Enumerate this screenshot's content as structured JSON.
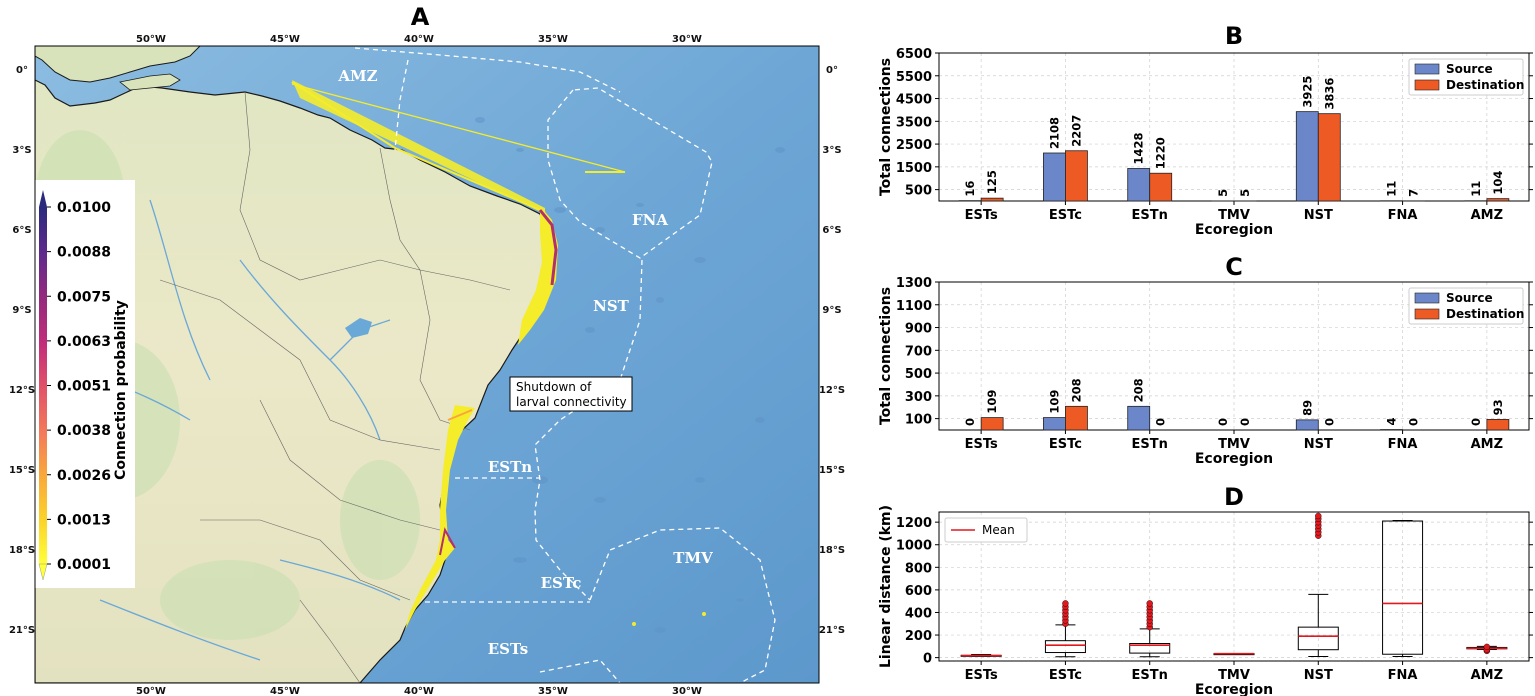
{
  "panel_a": {
    "letter": "A",
    "lon_ticks": [
      "50°W",
      "45°W",
      "40°W",
      "35°W",
      "30°W"
    ],
    "lat_ticks": [
      "0°",
      "3°S",
      "6°S",
      "9°S",
      "12°S",
      "15°S",
      "18°S",
      "21°S"
    ],
    "ecoregions": [
      "AMZ",
      "FNA",
      "NST",
      "ESTn",
      "TMV",
      "ESTc",
      "ESTs"
    ],
    "annotation": [
      "Shutdown of",
      "larval connectivity"
    ],
    "colorbar": {
      "label": "Connection probability",
      "ticks": [
        "0.0100",
        "0.0088",
        "0.0075",
        "0.0063",
        "0.0051",
        "0.0038",
        "0.0026",
        "0.0013",
        "0.0001"
      ],
      "colors": [
        "#2b2a7c",
        "#4b2a8f",
        "#6b2a8a",
        "#93297e",
        "#c12d7a",
        "#e0506a",
        "#f3795a",
        "#f9a73b",
        "#fbd42a",
        "#ffff3a"
      ]
    },
    "colors": {
      "ocean": "#7fb1db",
      "land": "#e7e6c4",
      "connection": "#f5ec2a",
      "strong": "#b3306f"
    }
  },
  "chart_data": [
    {
      "panel": "B",
      "type": "bar",
      "categories": [
        "ESTs",
        "ESTc",
        "ESTn",
        "TMV",
        "NST",
        "FNA",
        "AMZ"
      ],
      "series": [
        {
          "name": "Source",
          "values": [
            16,
            2108,
            1428,
            5,
            3925,
            11,
            11
          ],
          "color": "#6b86c9"
        },
        {
          "name": "Destination",
          "values": [
            125,
            2207,
            1220,
            5,
            3836,
            7,
            104
          ],
          "color": "#ee5a24"
        }
      ],
      "xlabel": "Ecoregion",
      "ylabel": "Total connections",
      "ylim": [
        0,
        6500
      ],
      "yticks": [
        500,
        1500,
        2500,
        3500,
        4500,
        5500,
        6500
      ],
      "grid": true,
      "legend": "top-right"
    },
    {
      "panel": "C",
      "type": "bar",
      "categories": [
        "ESTs",
        "ESTc",
        "ESTn",
        "TMV",
        "NST",
        "FNA",
        "AMZ"
      ],
      "series": [
        {
          "name": "Source",
          "values": [
            0,
            109,
            208,
            0,
            89,
            4,
            0
          ],
          "color": "#6b86c9"
        },
        {
          "name": "Destination",
          "values": [
            109,
            208,
            0,
            0,
            0,
            0,
            93
          ],
          "color": "#ee5a24"
        }
      ],
      "xlabel": "Ecoregion",
      "ylabel": "Total connections",
      "ylim": [
        0,
        1300
      ],
      "yticks": [
        100,
        300,
        500,
        700,
        900,
        1100,
        1300
      ],
      "grid": true,
      "legend": "top-right"
    },
    {
      "panel": "D",
      "type": "box",
      "categories": [
        "ESTs",
        "ESTc",
        "ESTn",
        "TMV",
        "NST",
        "FNA",
        "AMZ"
      ],
      "boxes": [
        {
          "whislo": 12,
          "q1": 14,
          "q3": 20,
          "whishi": 28,
          "mean": 18,
          "fliers": []
        },
        {
          "whislo": 8,
          "q1": 45,
          "q3": 150,
          "whishi": 290,
          "mean": 110,
          "fliers": [
            300,
            330,
            360,
            390,
            420,
            450,
            480
          ]
        },
        {
          "whislo": 8,
          "q1": 40,
          "q3": 125,
          "whishi": 255,
          "mean": 110,
          "fliers": [
            270,
            300,
            330,
            360,
            390,
            420,
            450,
            480
          ]
        },
        {
          "whislo": 35,
          "q1": 35,
          "q3": 35,
          "whishi": 35,
          "mean": 35,
          "fliers": []
        },
        {
          "whislo": 10,
          "q1": 70,
          "q3": 270,
          "whishi": 560,
          "mean": 190,
          "fliers": [
            1080,
            1110,
            1140,
            1170,
            1200,
            1230,
            1255
          ]
        },
        {
          "whislo": 10,
          "q1": 30,
          "q3": 1210,
          "whishi": 1215,
          "mean": 480,
          "fliers": []
        },
        {
          "whislo": 72,
          "q1": 78,
          "q3": 90,
          "whishi": 100,
          "mean": 82,
          "fliers": [
            60,
            70,
            95
          ]
        }
      ],
      "legend_label": "Mean",
      "mean_color": "#e0191f",
      "flier_color": "#e0191f",
      "xlabel": "Ecoregion",
      "ylabel": "Linear distance (km)",
      "ylim": [
        -30,
        1290
      ],
      "yticks": [
        0,
        200,
        400,
        600,
        800,
        1000,
        1200
      ],
      "grid": true,
      "legend": "top-left"
    }
  ]
}
